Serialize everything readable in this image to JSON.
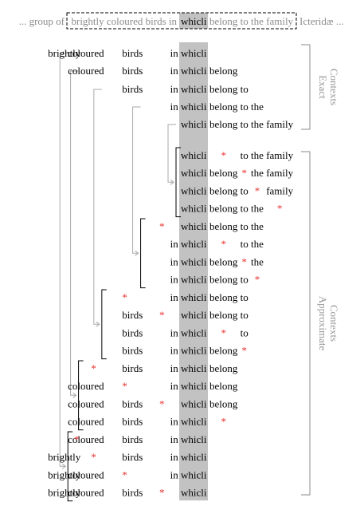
{
  "colors": {
    "highlight": "#c2c2c2",
    "star": "#e8312f",
    "gray_text": "#8c8c8c",
    "gray_line": "#aaaaaa",
    "bracket": "#000000"
  },
  "sentence": {
    "before": "... group of",
    "context": "brightly coloured birds in",
    "target": "whicli",
    "after_context": "belong to the family",
    "after": "Icteridæ ..."
  },
  "exact_label": [
    "Exact",
    "Contexts"
  ],
  "approx_label": [
    "Approximate",
    "Contexts"
  ],
  "mask_symbol": "*",
  "exact_rows": [
    [
      "brightly",
      "coloured",
      "birds",
      "in",
      "whicli"
    ],
    [
      "coloured",
      "birds",
      "in",
      "whicli",
      "belong"
    ],
    [
      "birds",
      "in",
      "whicli",
      "belong",
      "to"
    ],
    [
      "in",
      "whicli",
      "belong",
      "to",
      "the"
    ],
    [
      "whicli",
      "belong",
      "to",
      "the",
      "family"
    ]
  ],
  "approx_groups": [
    [
      [
        "whicli",
        "*",
        "to",
        "the",
        "family"
      ],
      [
        "whicli",
        "belong",
        "*",
        "the",
        "family"
      ],
      [
        "whicli",
        "belong",
        "to",
        "*",
        "family"
      ],
      [
        "whicli",
        "belong",
        "to",
        "the",
        "*"
      ]
    ],
    [
      [
        "*",
        "whicli",
        "belong",
        "to",
        "the"
      ],
      [
        "in",
        "whicli",
        "*",
        "to",
        "the"
      ],
      [
        "in",
        "whicli",
        "belong",
        "*",
        "the"
      ],
      [
        "in",
        "whicli",
        "belong",
        "to",
        "*"
      ]
    ],
    [
      [
        "*",
        "in",
        "whicli",
        "belong",
        "to"
      ],
      [
        "birds",
        "*",
        "whicli",
        "belong",
        "to"
      ],
      [
        "birds",
        "in",
        "whicli",
        "*",
        "to"
      ],
      [
        "birds",
        "in",
        "whicli",
        "belong",
        "*"
      ]
    ],
    [
      [
        "*",
        "birds",
        "in",
        "whicli",
        "belong"
      ],
      [
        "coloured",
        "*",
        "in",
        "whicli",
        "belong"
      ],
      [
        "coloured",
        "birds",
        "*",
        "whicli",
        "belong"
      ],
      [
        "coloured",
        "birds",
        "in",
        "whicli",
        "*"
      ]
    ],
    [
      [
        "*",
        "coloured",
        "birds",
        "in",
        "whicli"
      ],
      [
        "brightly",
        "*",
        "birds",
        "in",
        "whicli"
      ],
      [
        "brightly",
        "coloured",
        "*",
        "in",
        "whicli"
      ],
      [
        "brightly",
        "coloured",
        "birds",
        "*",
        "whicli"
      ]
    ]
  ]
}
